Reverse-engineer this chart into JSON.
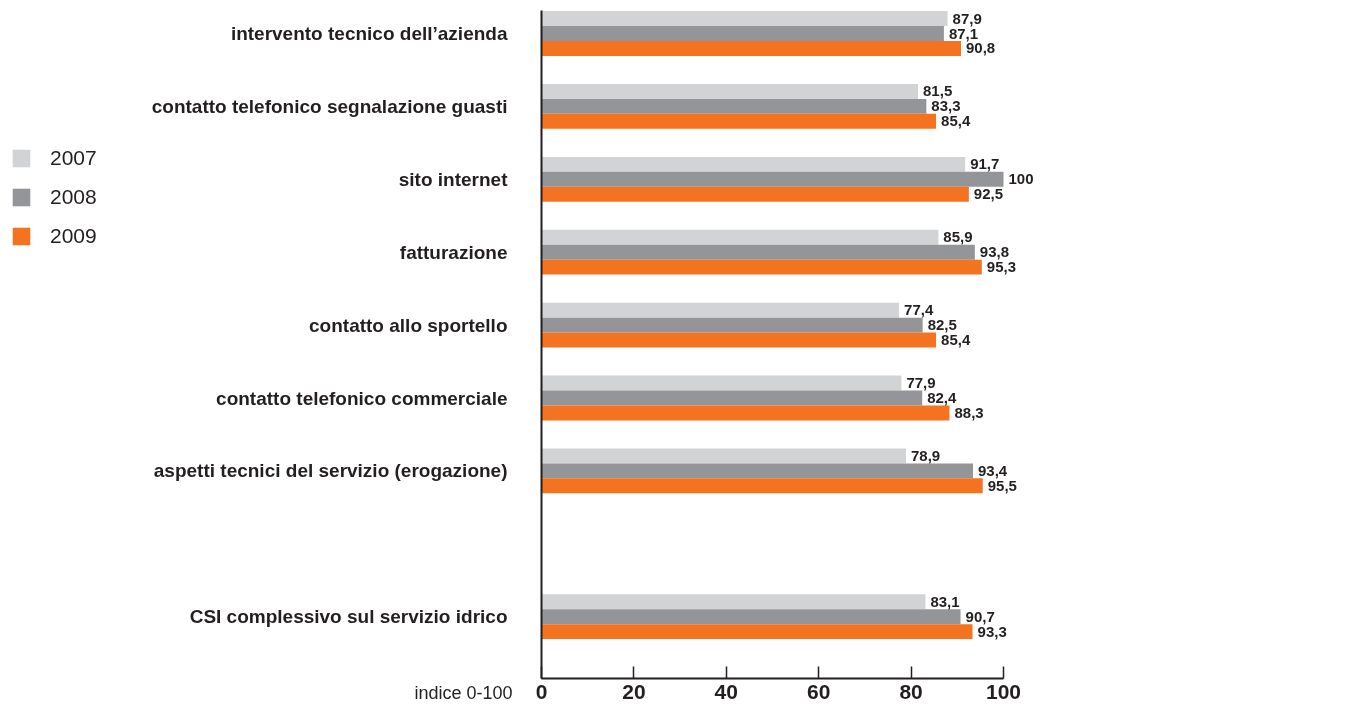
{
  "chart_data": {
    "type": "bar",
    "orientation": "horizontal",
    "categories": [
      "intervento tecnico dell’azienda",
      "contatto telefonico segnalazione guasti",
      "sito internet",
      "fatturazione",
      "contatto allo sportello",
      "contatto telefonico commerciale",
      "aspetti tecnici del servizio (erogazione)",
      null,
      "CSI complessivo sul servizio idrico"
    ],
    "series": [
      {
        "name": "2007",
        "color": "#d1d3d4",
        "values": [
          87.9,
          81.5,
          91.7,
          85.9,
          77.4,
          77.9,
          78.9,
          null,
          83.1
        ],
        "value_labels": [
          "87,9",
          "81,5",
          "91,7",
          "85,9",
          "77,4",
          "77,9",
          "78,9",
          null,
          "83,1"
        ]
      },
      {
        "name": "2008",
        "color": "#939598",
        "values": [
          87.1,
          83.3,
          100,
          93.8,
          82.5,
          82.4,
          93.4,
          null,
          90.7
        ],
        "value_labels": [
          "87,1",
          "83,3",
          "100",
          "93,8",
          "82,5",
          "82,4",
          "93,4",
          null,
          "90,7"
        ]
      },
      {
        "name": "2009",
        "color": "#f47320",
        "values": [
          90.8,
          85.4,
          92.5,
          95.3,
          85.4,
          88.3,
          95.5,
          null,
          93.3
        ],
        "value_labels": [
          "90,8",
          "85,4",
          "92,5",
          "95,3",
          "85,4",
          "88,3",
          "95,5",
          null,
          "93,3"
        ]
      }
    ],
    "xlabel": "indice 0-100",
    "xlim": [
      0,
      100
    ],
    "xticks": [
      0,
      20,
      40,
      60,
      80,
      100
    ],
    "grid": false,
    "legend": "left"
  }
}
